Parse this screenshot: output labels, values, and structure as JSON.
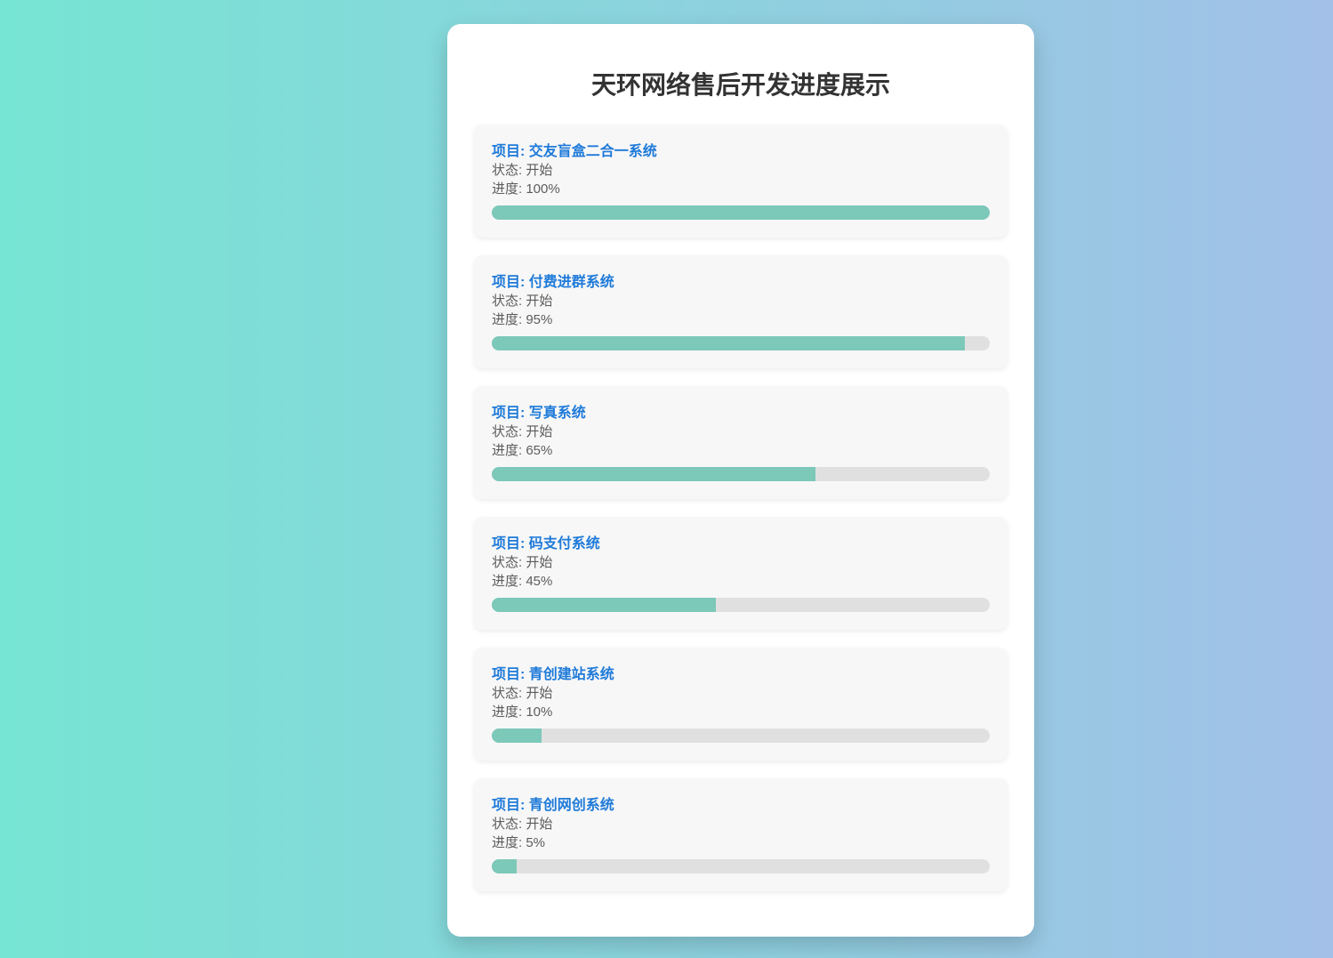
{
  "page": {
    "title": "天环网络售后开发进度展示"
  },
  "labels": {
    "project_prefix": "项目: ",
    "status_prefix": "状态: ",
    "progress_prefix": "进度: "
  },
  "colors": {
    "background_gradient_left": "#76e5d3",
    "background_gradient_right": "#a2c0e8",
    "panel_background": "#ffffff",
    "card_background": "#f7f7f7",
    "project_title_blue": "#1e7ad9",
    "body_text_gray": "#5c5c5c",
    "progress_fill": "#7cc8b9",
    "progress_track": "#e0e0e0"
  },
  "projects": [
    {
      "name": "交友盲盒二合一系统",
      "status": "开始",
      "progress_percent": 100,
      "progress_text": "100%"
    },
    {
      "name": "付费进群系统",
      "status": "开始",
      "progress_percent": 95,
      "progress_text": "95%"
    },
    {
      "name": "写真系统",
      "status": "开始",
      "progress_percent": 65,
      "progress_text": "65%"
    },
    {
      "name": "码支付系统",
      "status": "开始",
      "progress_percent": 45,
      "progress_text": "45%"
    },
    {
      "name": "青创建站系统",
      "status": "开始",
      "progress_percent": 10,
      "progress_text": "10%"
    },
    {
      "name": "青创网创系统",
      "status": "开始",
      "progress_percent": 5,
      "progress_text": "5%"
    }
  ]
}
